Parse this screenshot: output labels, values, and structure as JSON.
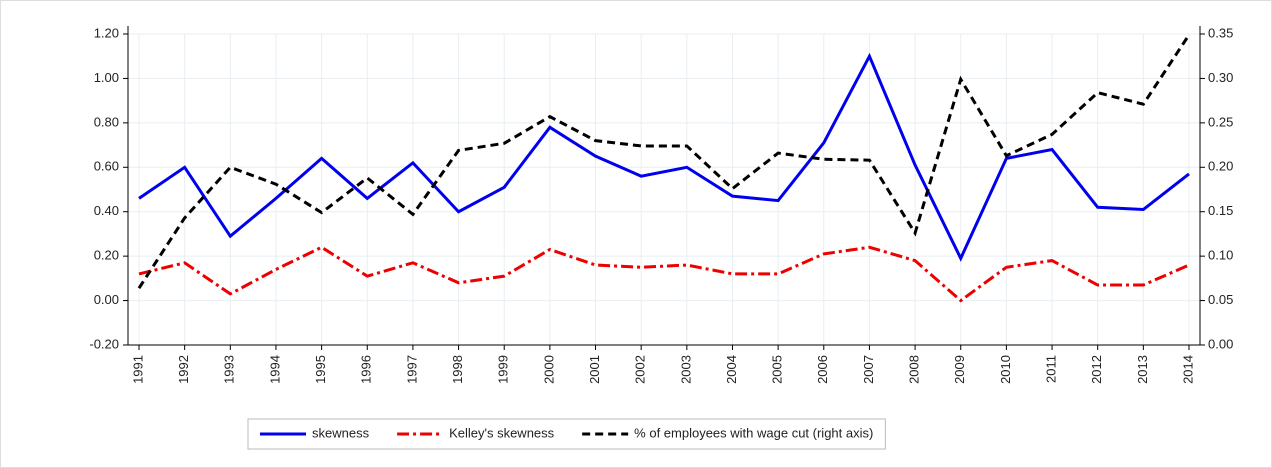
{
  "chart_data": {
    "type": "line",
    "categories": [
      "1991",
      "1992",
      "1993",
      "1994",
      "1995",
      "1996",
      "1997",
      "1998",
      "1999",
      "2000",
      "2001",
      "2002",
      "2003",
      "2004",
      "2005",
      "2006",
      "2007",
      "2008",
      "2009",
      "2010",
      "2011",
      "2012",
      "2013",
      "2014"
    ],
    "series": [
      {
        "name": "skewness",
        "color": "#0000ee",
        "dash": "solid",
        "axis": "y",
        "values": [
          0.46,
          0.6,
          0.29,
          0.46,
          0.64,
          0.46,
          0.62,
          0.4,
          0.51,
          0.78,
          0.65,
          0.56,
          0.6,
          0.47,
          0.45,
          0.71,
          1.1,
          0.61,
          0.19,
          0.64,
          0.68,
          0.42,
          0.41,
          0.57
        ]
      },
      {
        "name": "Kelley's skewness",
        "color": "#ee0000",
        "dash": "dashdot",
        "axis": "y",
        "values": [
          0.12,
          0.17,
          0.03,
          0.14,
          0.24,
          0.11,
          0.17,
          0.08,
          0.11,
          0.23,
          0.16,
          0.15,
          0.16,
          0.12,
          0.12,
          0.21,
          0.24,
          0.18,
          0.0,
          0.15,
          0.18,
          0.07,
          0.07,
          0.16
        ]
      },
      {
        "name": "% of employees with wage cut (right axis)",
        "color": "#000000",
        "dash": "dash",
        "axis": "y2",
        "values": [
          0.064,
          0.143,
          0.2,
          0.181,
          0.149,
          0.188,
          0.147,
          0.219,
          0.227,
          0.257,
          0.23,
          0.224,
          0.224,
          0.176,
          0.216,
          0.209,
          0.208,
          0.126,
          0.299,
          0.213,
          0.237,
          0.284,
          0.271,
          0.349
        ]
      }
    ],
    "ylim": [
      -0.2,
      1.2
    ],
    "yticks": [
      {
        "value": -0.2,
        "label": "-0.20"
      },
      {
        "value": 0,
        "label": "0.00"
      },
      {
        "value": 0.2,
        "label": "0.20"
      },
      {
        "value": 0.4,
        "label": "0.40"
      },
      {
        "value": 0.6,
        "label": "0.60"
      },
      {
        "value": 0.8,
        "label": "0.80"
      },
      {
        "value": 1.0,
        "label": "1.00"
      },
      {
        "value": 1.2,
        "label": "1.20"
      }
    ],
    "y2lim": [
      0,
      0.35
    ],
    "y2ticks": [
      {
        "value": 0,
        "label": "0.00"
      },
      {
        "value": 0.05,
        "label": "0.05"
      },
      {
        "value": 0.1,
        "label": "0.10"
      },
      {
        "value": 0.15,
        "label": "0.15"
      },
      {
        "value": 0.2,
        "label": "0.20"
      },
      {
        "value": 0.25,
        "label": "0.25"
      },
      {
        "value": 0.3,
        "label": "0.30"
      },
      {
        "value": 0.35,
        "label": "0.35"
      }
    ],
    "grid": true,
    "legend": "bottom"
  }
}
